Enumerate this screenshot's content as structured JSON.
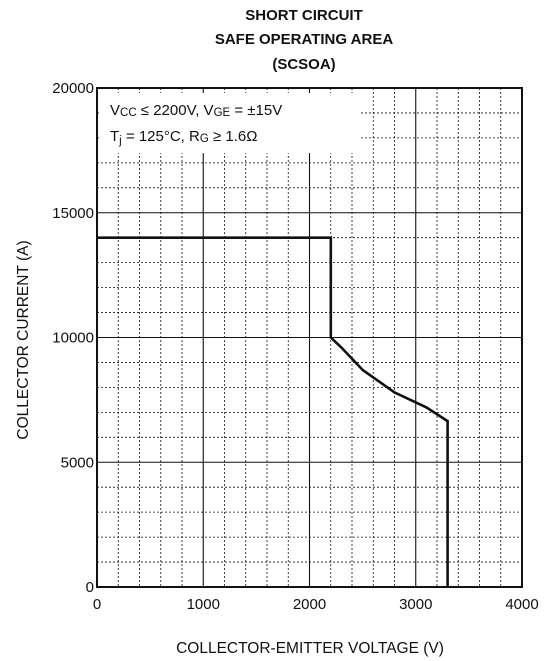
{
  "chart_data": {
    "type": "line",
    "title_lines": [
      "SHORT CIRCUIT",
      "SAFE OPERATING AREA",
      "(SCSOA)"
    ],
    "xlabel": "COLLECTOR-EMITTER VOLTAGE (V)",
    "ylabel": "COLLECTOR CURRENT (A)",
    "xlim": [
      0,
      4000
    ],
    "ylim": [
      0,
      20000
    ],
    "x_ticks": [
      0,
      1000,
      2000,
      3000,
      4000
    ],
    "y_ticks": [
      0,
      5000,
      10000,
      15000,
      20000
    ],
    "x_tick_labels": [
      "0",
      "1000",
      "2000",
      "3000",
      "4000"
    ],
    "y_tick_labels": [
      "0",
      "5000",
      "10000",
      "15000",
      "20000"
    ],
    "minor_divisions": 5,
    "grid": true,
    "annotation": {
      "line1": {
        "vcc_symbol": "V",
        "vcc_sub": "CC",
        "vcc_rest": " ≤ 2200V, ",
        "vge_symbol": "V",
        "vge_sub": "GE",
        "vge_rest": " = ±15V"
      },
      "line2": {
        "tj_symbol": "T",
        "tj_sub": "j",
        "tj_rest": " = 125°C, ",
        "rg_symbol": "R",
        "rg_sub": "G",
        "rg_rest": " ≥ 1.6Ω"
      }
    },
    "series": [
      {
        "x": [
          0,
          2200,
          2200,
          2300,
          2500,
          2800,
          3100,
          3300,
          3300
        ],
        "y": [
          14000,
          14000,
          10000,
          9600,
          8700,
          7800,
          7200,
          6650,
          0
        ]
      }
    ]
  }
}
